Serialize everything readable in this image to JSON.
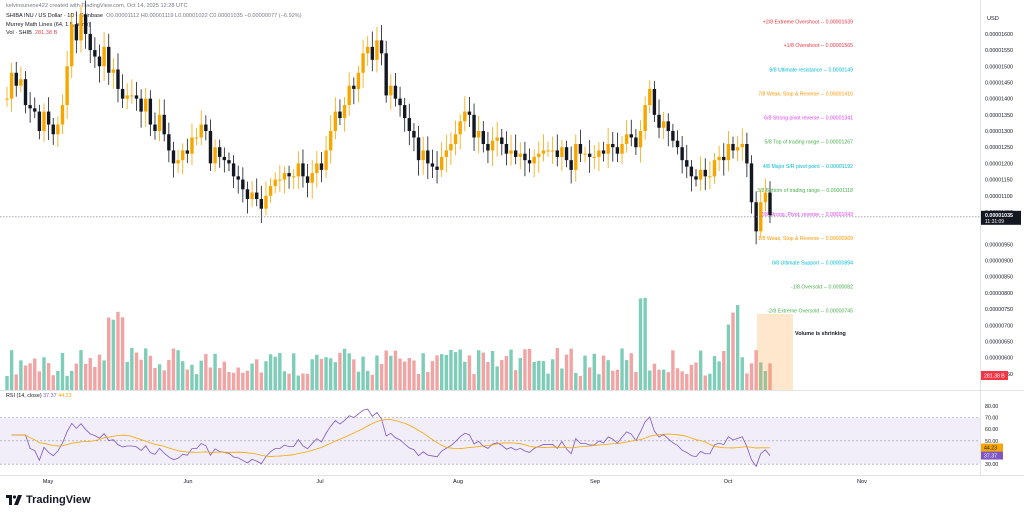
{
  "header": {
    "author": "kelvinsunene422 created with TradingView.com, Oct 14, 2025 12:28 UTC",
    "symbol": "SHIBA INU / US Dollar · 1D · Coinbase",
    "ohlc": "O0.00001112  H0.00001119  L0.00001022  C0.00001035  −0.00000077 (−6.92%)",
    "indicator": "Murrey Math Lines (64, 1.5, none)",
    "vol_label": "Vol · SHIB",
    "vol_value": "281.38 B"
  },
  "rsi_header": {
    "label": "RSI (14, close)",
    "value1": "37.37",
    "value2": "44.23"
  },
  "brand": {
    "name": "TradingView"
  },
  "colors": {
    "up": "#f7a600",
    "down": "#131722",
    "vol_up": "#7ecdb8",
    "vol_down": "#f0a4a4",
    "rsi": "#7e57c2",
    "rsi_ma": "#f7a600"
  },
  "chart_data": {
    "type": "candlestick",
    "title": "SHIBA INU / US Dollar · 1D · Coinbase",
    "currency": "USD",
    "ylim": [
      5e-06,
      1.68e-05
    ],
    "y_ticks": [
      "0.00001600",
      "0.00001550",
      "0.00001500",
      "0.00001450",
      "0.00001400",
      "0.00001350",
      "0.00001300",
      "0.00001250",
      "0.00001200",
      "0.00001150",
      "0.00001100",
      "0.00001050",
      "0.00000950",
      "0.00000900",
      "0.00000850",
      "0.00000800",
      "0.00000750",
      "0.00000700",
      "0.00000650",
      "0.00000600",
      "0.00000550"
    ],
    "x_ticks": [
      "May",
      "Jun",
      "Jul",
      "Aug",
      "Sep",
      "Oct",
      "Nov"
    ],
    "last_price": "0.00001035",
    "countdown": "11:31:09",
    "volume_label": "281.38 B",
    "close_prices": [
      1.4e-05,
      1.48e-05,
      1.44e-05,
      1.46e-05,
      1.38e-05,
      1.37e-05,
      1.36e-05,
      1.3e-05,
      1.36e-05,
      1.32e-05,
      1.29e-05,
      1.32e-05,
      1.38e-05,
      1.5e-05,
      1.63e-05,
      1.58e-05,
      1.66e-05,
      1.6e-05,
      1.55e-05,
      1.53e-05,
      1.5e-05,
      1.56e-05,
      1.48e-05,
      1.49e-05,
      1.43e-05,
      1.4e-05,
      1.41e-05,
      1.41e-05,
      1.4e-05,
      1.36e-05,
      1.4e-05,
      1.32e-05,
      1.3e-05,
      1.35e-05,
      1.29e-05,
      1.24e-05,
      1.2e-05,
      1.21e-05,
      1.24e-05,
      1.23e-05,
      1.28e-05,
      1.28e-05,
      1.32e-05,
      1.3e-05,
      1.2e-05,
      1.25e-05,
      1.22e-05,
      1.21e-05,
      1.2e-05,
      1.16e-05,
      1.15e-05,
      1.12e-05,
      1.09e-05,
      1.11e-05,
      1.09e-05,
      1.06e-05,
      1.1e-05,
      1.13e-05,
      1.15e-05,
      1.15e-05,
      1.17e-05,
      1.16e-05,
      1.16e-05,
      1.2e-05,
      1.16e-05,
      1.14e-05,
      1.17e-05,
      1.2e-05,
      1.18e-05,
      1.24e-05,
      1.3e-05,
      1.36e-05,
      1.34e-05,
      1.38e-05,
      1.44e-05,
      1.43e-05,
      1.48e-05,
      1.54e-05,
      1.56e-05,
      1.52e-05,
      1.58e-05,
      1.54e-05,
      1.41e-05,
      1.44e-05,
      1.4e-05,
      1.38e-05,
      1.34e-05,
      1.3e-05,
      1.28e-05,
      1.21e-05,
      1.24e-05,
      1.2e-05,
      1.19e-05,
      1.18e-05,
      1.22e-05,
      1.24e-05,
      1.26e-05,
      1.29e-05,
      1.33e-05,
      1.36e-05,
      1.35e-05,
      1.28e-05,
      1.3e-05,
      1.26e-05,
      1.24e-05,
      1.27e-05,
      1.28e-05,
      1.26e-05,
      1.23e-05,
      1.24e-05,
      1.22e-05,
      1.23e-05,
      1.21e-05,
      1.2e-05,
      1.22e-05,
      1.23e-05,
      1.24e-05,
      1.24e-05,
      1.24e-05,
      1.22e-05,
      1.25e-05,
      1.21e-05,
      1.18e-05,
      1.26e-05,
      1.23e-05,
      1.23e-05,
      1.22e-05,
      1.22e-05,
      1.24e-05,
      1.23e-05,
      1.26e-05,
      1.25e-05,
      1.23e-05,
      1.26e-05,
      1.29e-05,
      1.28e-05,
      1.25e-05,
      1.3e-05,
      1.38e-05,
      1.43e-05,
      1.35e-05,
      1.31e-05,
      1.33e-05,
      1.3e-05,
      1.27e-05,
      1.25e-05,
      1.21e-05,
      1.19e-05,
      1.16e-05,
      1.15e-05,
      1.18e-05,
      1.16e-05,
      1.16e-05,
      1.21e-05,
      1.22e-05,
      1.21e-05,
      1.26e-05,
      1.24e-05,
      1.25e-05,
      1.26e-05,
      1.2e-05,
      1.08e-05,
      9.9e-06,
      1.08e-05,
      1.11e-05,
      1.04e-05
    ],
    "murrey_lines": [
      {
        "label": "+2/8 Extreme Overshoot",
        "value": "0.00001639",
        "color": "#f23645"
      },
      {
        "label": "+1/8 Overshoot",
        "value": "0.00001565",
        "color": "#f23645"
      },
      {
        "label": "8/8 Ultimate resistance",
        "value": "0.0000149",
        "color": "#00bcd4"
      },
      {
        "label": "7/8 Weak, Stop & Reverse",
        "value": "0.00001416",
        "color": "#ff9800"
      },
      {
        "label": "6/8 Strong pivot reverse",
        "value": "0.00001341",
        "color": "#e040fb"
      },
      {
        "label": "5/8 Top of trading range",
        "value": "0.00001267",
        "color": "#4caf50"
      },
      {
        "label": "4/8 Major S/R pivot point",
        "value": "0.00001192",
        "color": "#00bcd4"
      },
      {
        "label": "3/8 Bottom of trading range",
        "value": "0.00001118",
        "color": "#4caf50"
      },
      {
        "label": "2/8 Strong, Pivot, reverse",
        "value": "0.00001043",
        "color": "#e040fb"
      },
      {
        "label": "1/8 Weak, Stop & Reverse",
        "value": "0.00000969",
        "color": "#ff9800"
      },
      {
        "label": "0/8 Ultimate Support",
        "value": "0.00000894",
        "color": "#00bcd4"
      },
      {
        "label": "-1/8 Oversold",
        "value": "0.0000082",
        "color": "#4caf50"
      },
      {
        "label": "-2/8 Extreme Oversold",
        "value": "0.00000745",
        "color": "#4caf50"
      }
    ],
    "annotation": "Volume is shrinking",
    "rsi": {
      "label": "RSI (14, close)",
      "ylim": [
        25,
        85
      ],
      "ticks": [
        "80.00",
        "70.00",
        "60.00",
        "50.00",
        "40.00",
        "30.00"
      ],
      "levels": [
        70,
        50,
        30
      ],
      "current": "37.37",
      "ma_current": "44.23"
    }
  }
}
